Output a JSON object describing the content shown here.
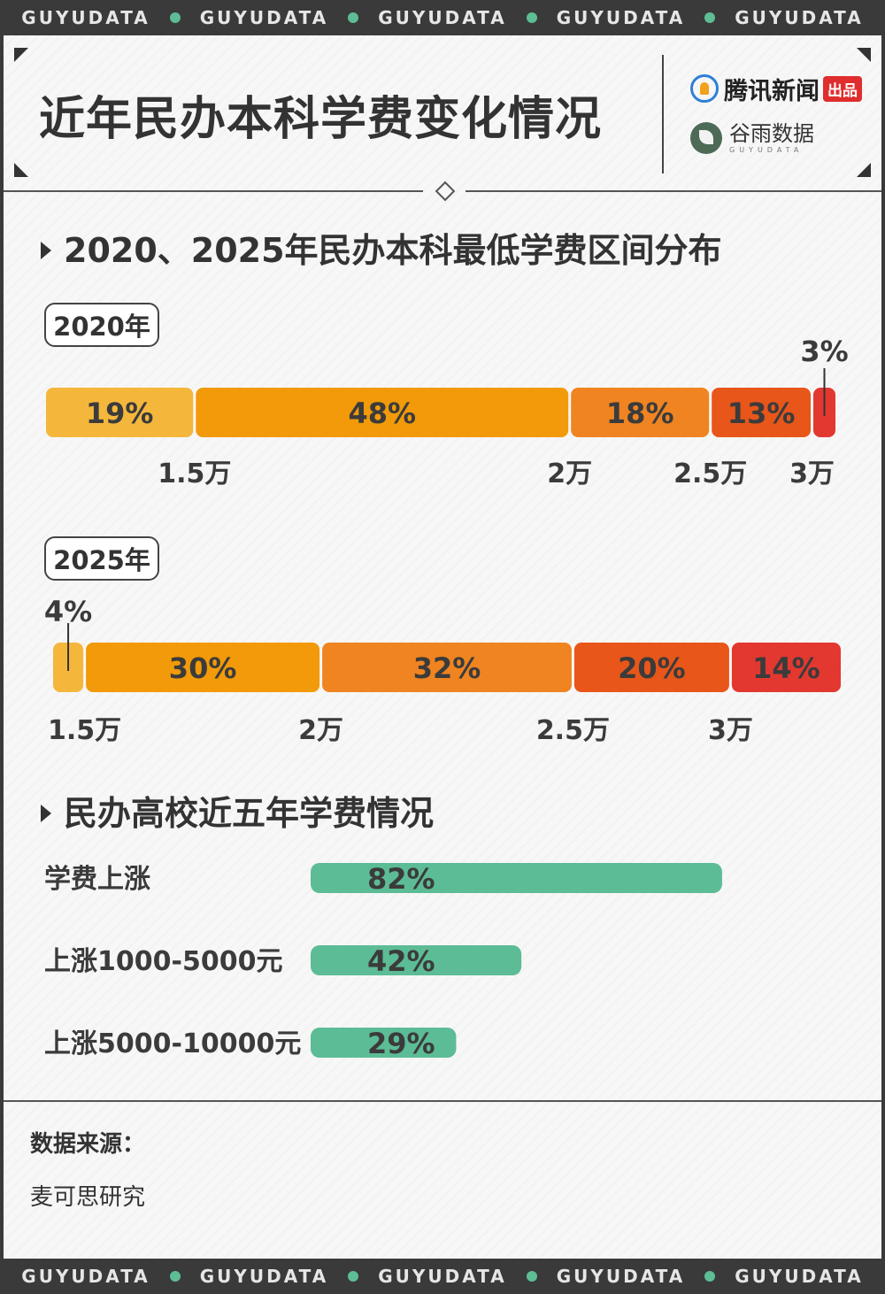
{
  "strip_text": [
    "GUYUDATA",
    "GUYUDATA",
    "GUYUDATA",
    "GUYUDATA",
    "GUYUDATA"
  ],
  "header": {
    "title": "近年民办本科学费变化情况",
    "logo_primary": "腾讯新闻",
    "logo_badge": "出品",
    "logo_secondary": "谷雨数据",
    "logo_secondary_en": "GUYUDATA"
  },
  "colors": {
    "seg1": "#f5b73b",
    "seg2": "#f29a09",
    "seg3": "#ef8421",
    "seg4": "#e8561a",
    "seg5": "#e33830",
    "green": "#5cbc96"
  },
  "section1_title": "2020、2025年民办本科最低学费区间分布",
  "section2_title": "民办高校近五年学费情况",
  "chart_data": [
    {
      "type": "bar",
      "stacked": "100%",
      "year": "2020年",
      "segments": [
        19,
        48,
        18,
        13,
        3
      ],
      "labels": [
        "19%",
        "48%",
        "18%",
        "13%",
        "3%"
      ],
      "boundary_labels": [
        "1.5万",
        "2万",
        "2.5万",
        "3万"
      ]
    },
    {
      "type": "bar",
      "stacked": "100%",
      "year": "2025年",
      "segments": [
        4,
        30,
        32,
        20,
        14
      ],
      "labels": [
        "4%",
        "30%",
        "32%",
        "20%",
        "14%"
      ],
      "boundary_labels": [
        "1.5万",
        "2万",
        "2.5万",
        "3万"
      ]
    },
    {
      "type": "bar",
      "orientation": "horizontal",
      "categories": [
        "学费上涨",
        "上涨1000-5000元",
        "上涨5000-10000元"
      ],
      "values": [
        82,
        42,
        29
      ],
      "labels": [
        "82%",
        "42%",
        "29%"
      ]
    }
  ],
  "source": {
    "label": "数据来源：",
    "text": "麦可思研究"
  }
}
